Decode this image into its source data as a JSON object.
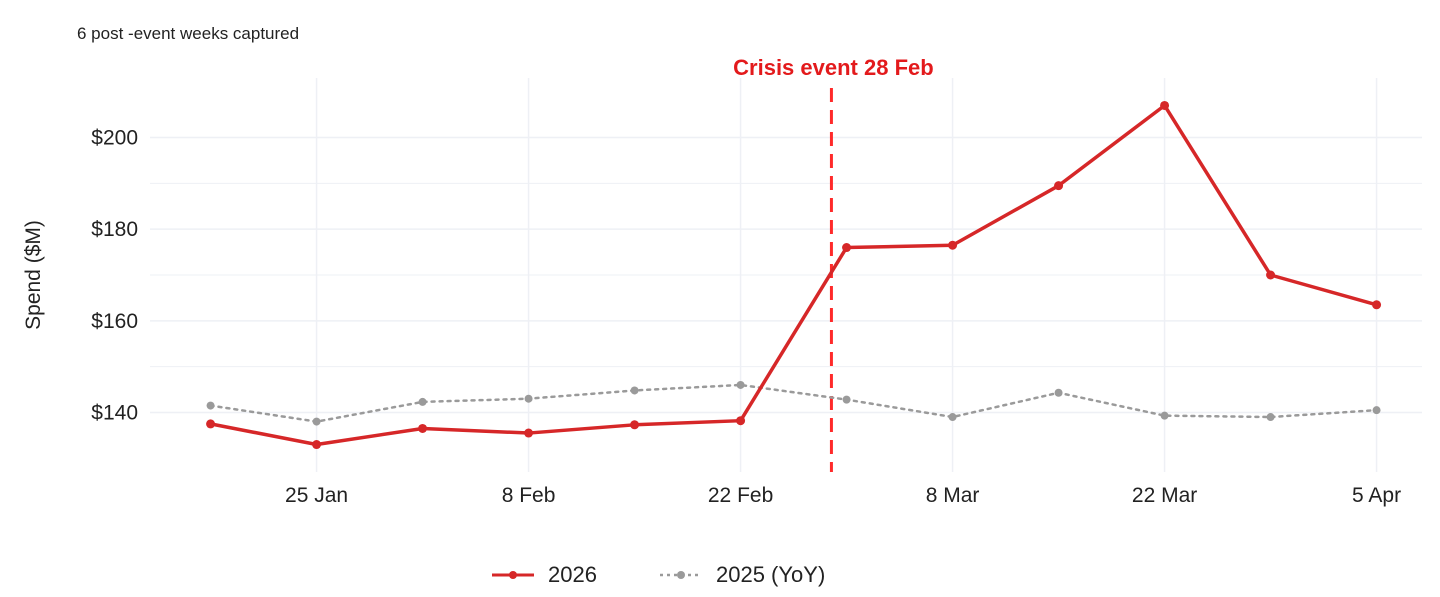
{
  "subtitle": "6 post -event weeks captured",
  "annotation": {
    "text": "Crisis event 28 Feb",
    "color": "#e31a1c"
  },
  "colors": {
    "series_2026": "#d62728",
    "series_2025": "#9a9a9a",
    "grid": "#eef0f5",
    "annotation": "#ff2a2a"
  },
  "legend": {
    "items": [
      {
        "label": "2026"
      },
      {
        "label": "2025 (YoY)"
      }
    ]
  },
  "chart_data": {
    "type": "line",
    "title": "",
    "subtitle": "6 post -event weeks captured",
    "xlabel": "",
    "ylabel": "Spend ($M)",
    "x_ticks": [
      "25 Jan",
      "8 Feb",
      "22 Feb",
      "8 Mar",
      "22 Mar",
      "5 Apr"
    ],
    "y_ticks": [
      "$140",
      "$160",
      "$180",
      "$200"
    ],
    "ylim": [
      127,
      213
    ],
    "xlim": [
      "2026-01-14",
      "2026-04-08"
    ],
    "x": [
      "2026-01-18",
      "2026-01-25",
      "2026-02-01",
      "2026-02-08",
      "2026-02-15",
      "2026-02-22",
      "2026-03-01",
      "2026-03-08",
      "2026-03-15",
      "2026-03-22",
      "2026-03-29",
      "2026-04-05"
    ],
    "series": [
      {
        "name": "2026",
        "style": "solid",
        "values": [
          137.5,
          133,
          136.5,
          135.5,
          137.3,
          138.2,
          176,
          176.5,
          189.5,
          207,
          170,
          163.5
        ]
      },
      {
        "name": "2025 (YoY)",
        "style": "dotted",
        "values": [
          141.5,
          138,
          142.3,
          143,
          144.8,
          146,
          142.8,
          139,
          144.3,
          139.3,
          139,
          140.5
        ]
      }
    ],
    "event_line": {
      "x": "2026-02-28",
      "label": "Crisis event 28 Feb"
    },
    "grid": true,
    "legend_position": "bottom"
  }
}
